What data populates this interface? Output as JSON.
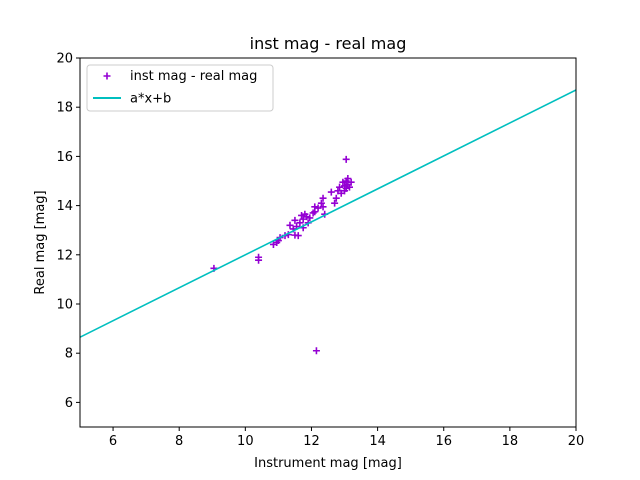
{
  "chart_data": {
    "type": "scatter",
    "title": "inst mag - real mag",
    "xlabel": "Instrument mag [mag]",
    "ylabel": "Real mag [mag]",
    "xlim": [
      5,
      20
    ],
    "ylim": [
      5,
      20
    ],
    "xticks": [
      6,
      8,
      10,
      12,
      14,
      16,
      18,
      20
    ],
    "yticks": [
      6,
      8,
      10,
      12,
      14,
      16,
      18,
      20
    ],
    "grid": false,
    "legend_position": "top-left",
    "series": [
      {
        "name": "inst mag - real mag",
        "kind": "scatter",
        "marker": "+",
        "color": "#9400d3",
        "points": [
          [
            9.05,
            11.45
          ],
          [
            10.4,
            11.9
          ],
          [
            10.4,
            11.78
          ],
          [
            10.85,
            12.42
          ],
          [
            10.95,
            12.5
          ],
          [
            11.0,
            12.58
          ],
          [
            11.05,
            12.7
          ],
          [
            11.2,
            12.78
          ],
          [
            11.3,
            12.82
          ],
          [
            11.35,
            13.2
          ],
          [
            11.45,
            13.05
          ],
          [
            11.5,
            12.8
          ],
          [
            11.5,
            13.4
          ],
          [
            11.55,
            13.15
          ],
          [
            11.6,
            12.78
          ],
          [
            11.65,
            13.3
          ],
          [
            11.7,
            13.6
          ],
          [
            11.75,
            13.45
          ],
          [
            11.75,
            13.1
          ],
          [
            11.8,
            13.65
          ],
          [
            11.85,
            13.55
          ],
          [
            11.9,
            13.3
          ],
          [
            11.95,
            13.5
          ],
          [
            12.05,
            13.7
          ],
          [
            12.1,
            13.95
          ],
          [
            12.1,
            13.75
          ],
          [
            12.2,
            13.9
          ],
          [
            12.3,
            14.1
          ],
          [
            12.35,
            14.3
          ],
          [
            12.35,
            13.95
          ],
          [
            12.4,
            13.65
          ],
          [
            12.6,
            14.55
          ],
          [
            12.7,
            14.1
          ],
          [
            12.75,
            14.3
          ],
          [
            12.8,
            14.6
          ],
          [
            12.85,
            14.75
          ],
          [
            12.9,
            14.5
          ],
          [
            12.95,
            14.95
          ],
          [
            13.0,
            14.6
          ],
          [
            13.0,
            14.8
          ],
          [
            13.05,
            14.7
          ],
          [
            13.05,
            15.0
          ],
          [
            13.1,
            14.85
          ],
          [
            13.1,
            15.1
          ],
          [
            13.15,
            14.75
          ],
          [
            13.2,
            14.95
          ],
          [
            13.05,
            15.88
          ],
          [
            12.15,
            8.1
          ]
        ]
      },
      {
        "name": "a*x+b",
        "kind": "line",
        "color": "#00bfbf",
        "points": [
          [
            5,
            8.65
          ],
          [
            20,
            18.7
          ]
        ]
      }
    ]
  }
}
